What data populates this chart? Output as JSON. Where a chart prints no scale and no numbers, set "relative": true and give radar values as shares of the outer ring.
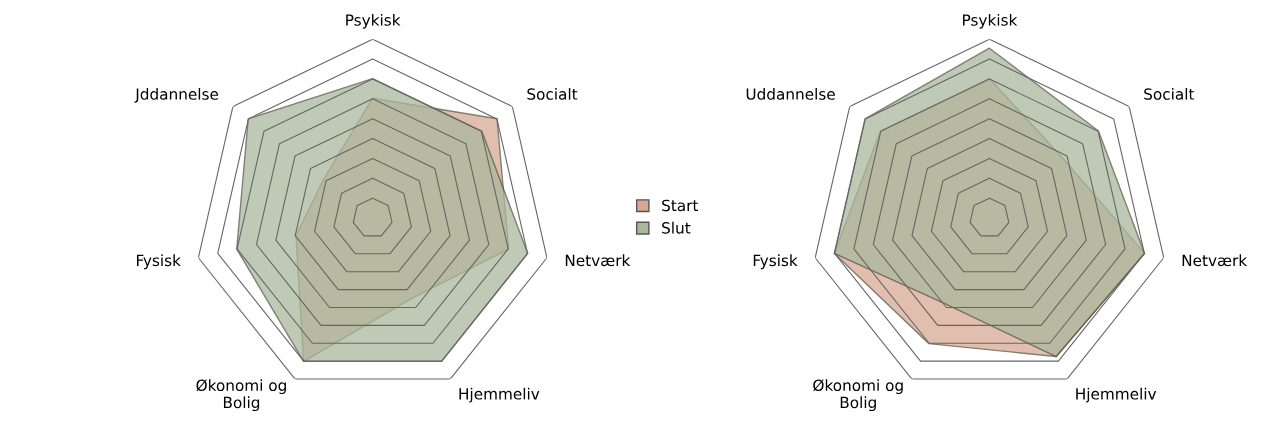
{
  "chart_data": [
    {
      "type": "radar",
      "relative": true,
      "categories": [
        "Psykisk",
        "Socialt",
        "Netværk",
        "Hjemmeliv",
        "Økonomi og\nBolig",
        "Fysisk",
        "Jddannelse"
      ],
      "legend": "right",
      "series": [
        {
          "name": "Start",
          "color": "#d8a894",
          "values": [
            0.67,
            0.89,
            0.78,
            0.5,
            0.89,
            0.44,
            0.35
          ]
        },
        {
          "name": "Slut",
          "color": "#a9b89c",
          "values": [
            0.78,
            0.78,
            0.89,
            0.89,
            0.89,
            0.78,
            0.89
          ]
        }
      ]
    },
    {
      "type": "radar",
      "relative": true,
      "categories": [
        "Psykisk",
        "Socialt",
        "Netværk",
        "Hjemmeliv",
        "Økonomi og\nBolig",
        "Fysisk",
        "Uddannelse"
      ],
      "series": [
        {
          "color": "#d8a894",
          "values": [
            0.78,
            0.53,
            0.89,
            0.86,
            0.78,
            0.89,
            0.78
          ]
        },
        {
          "color": "#a9b89c",
          "values": [
            0.95,
            0.78,
            0.89,
            0.86,
            0.54,
            0.89,
            0.89
          ]
        }
      ]
    }
  ]
}
